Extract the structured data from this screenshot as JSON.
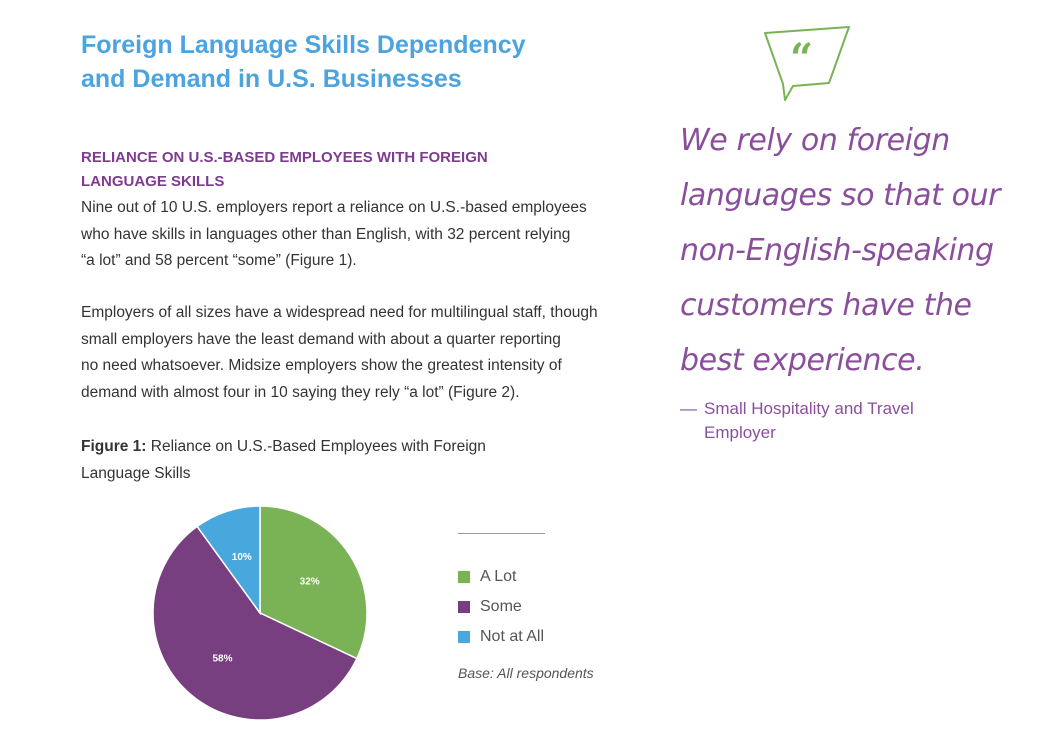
{
  "header": {
    "title_line1": "Foreign Language Skills Dependency",
    "title_line2": "and Demand in U.S. Businesses"
  },
  "section": {
    "heading_line1": "RELIANCE ON U.S.-BASED EMPLOYEES WITH FOREIGN",
    "heading_line2": "LANGUAGE SKILLS",
    "paragraph1": [
      "Nine out of 10 U.S. employers report a reliance on U.S.-based employees",
      "who have skills in languages other than English, with 32 percent relying",
      "“a lot” and 58 percent “some” (Figure 1)."
    ],
    "paragraph2": [
      "Employers of all sizes have a widespread need for multilingual staff, though",
      "small employers have the least demand with about a quarter reporting",
      "no need whatsoever. Midsize employers show the greatest intensity of",
      "demand with almost four in 10 saying they rely “a lot” (Figure 2)."
    ]
  },
  "figure": {
    "caption_lead": "Figure 1:",
    "caption_rest_line1": " Reliance on U.S.-Based Employees with Foreign",
    "caption_line2": "Language Skills",
    "base_note": "Base: All respondents"
  },
  "chart_data": {
    "type": "pie",
    "title": "Reliance on U.S.-Based Employees with Foreign Language Skills",
    "categories": [
      "A Lot",
      "Some",
      "Not at All"
    ],
    "values": [
      32,
      58,
      10
    ],
    "data_labels": [
      "32%",
      "58%",
      "10%"
    ],
    "colors": [
      "#7ab356",
      "#773f7f",
      "#48a7dd"
    ],
    "legend_position": "right"
  },
  "quote": {
    "icon": "quote-bubble-icon",
    "icon_color": "#7ab356",
    "lines": [
      "We rely on foreign",
      "languages so that our",
      "non-English-speaking",
      "customers have the",
      "best experience."
    ],
    "attribution_line1": "Small Hospitality and Travel",
    "attribution_line2": "Employer",
    "attribution_dash": "—"
  }
}
